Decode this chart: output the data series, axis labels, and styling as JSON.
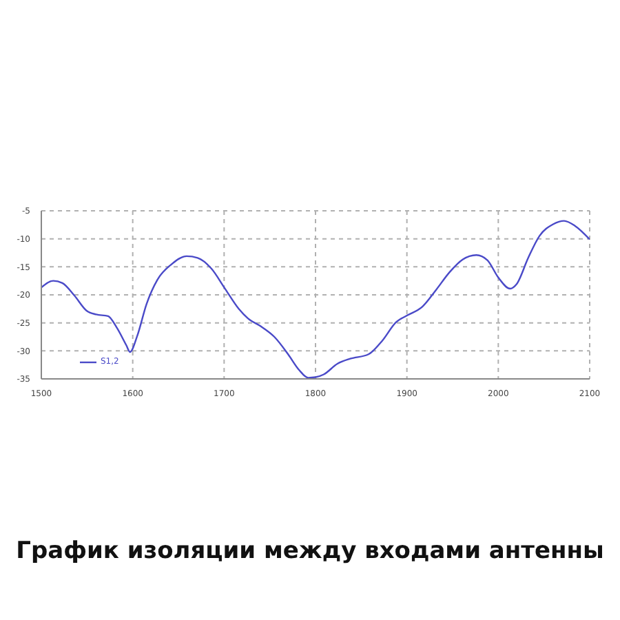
{
  "chart_data": {
    "type": "line",
    "title": "График изоляции между входами антенны",
    "x": [
      1500,
      1513,
      1523,
      1536,
      1550,
      1560,
      1573,
      1582,
      1593,
      1597,
      1605,
      1615,
      1627,
      1642,
      1659,
      1671,
      1686,
      1701,
      1716,
      1726,
      1740,
      1755,
      1770,
      1782,
      1792,
      1800,
      1809,
      1824,
      1838,
      1858,
      1873,
      1888,
      1900,
      1917,
      1932,
      1947,
      1961,
      1976,
      1988,
      2000,
      2013,
      2020,
      2033,
      2045,
      2060,
      2072,
      2084,
      2100
    ],
    "series": [
      {
        "name": "S1,2",
        "color": "#4a4ac8",
        "values": [
          -18.7,
          -17.5,
          -17.9,
          -20.1,
          -22.9,
          -23.5,
          -23.8,
          -25.7,
          -29.0,
          -30.2,
          -27.3,
          -21.7,
          -17.3,
          -14.6,
          -13.1,
          -13.4,
          -15.3,
          -18.9,
          -22.5,
          -24.2,
          -25.6,
          -27.5,
          -30.6,
          -33.4,
          -34.8,
          -34.7,
          -34.2,
          -32.3,
          -31.4,
          -30.6,
          -28.2,
          -24.9,
          -23.7,
          -22.1,
          -19.1,
          -15.9,
          -13.7,
          -12.9,
          -13.8,
          -16.9,
          -18.9,
          -18.1,
          -13.3,
          -9.5,
          -7.4,
          -6.8,
          -7.7,
          -10.1
        ]
      }
    ],
    "xlim": [
      1500,
      2100
    ],
    "xticks": [
      1500,
      1600,
      1700,
      1800,
      1900,
      2000,
      2100
    ],
    "ylim": [
      -35,
      -5
    ],
    "yticks": [
      -5,
      -10,
      -15,
      -20,
      -25,
      -30,
      -35
    ],
    "grid": true,
    "legend": "bottom left",
    "marker": "none",
    "line_style": "solid"
  }
}
